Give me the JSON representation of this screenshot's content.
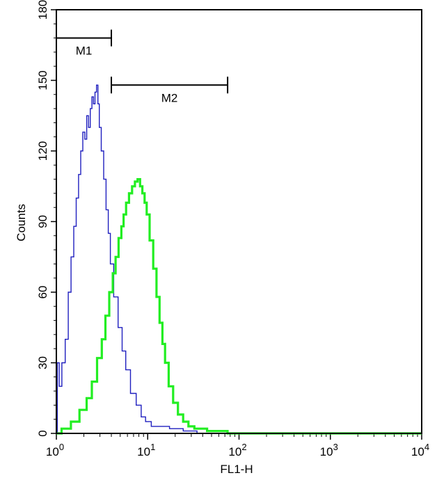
{
  "chart_data": {
    "type": "histogram",
    "xlabel": "FL1-H",
    "ylabel": "Counts",
    "x_scale": "log",
    "xlim": [
      1,
      10000
    ],
    "ylim": [
      0,
      180
    ],
    "y_ticks": [
      0,
      30,
      60,
      90,
      120,
      150,
      180
    ],
    "x_ticks": [
      {
        "base": "10",
        "exp": "0"
      },
      {
        "base": "10",
        "exp": "1"
      },
      {
        "base": "10",
        "exp": "2"
      },
      {
        "base": "10",
        "exp": "3"
      },
      {
        "base": "10",
        "exp": "4"
      }
    ],
    "colors": {
      "control": "#1f1fbf",
      "sample": "#22ee22",
      "axis": "#000000"
    },
    "series": [
      {
        "color_key": "control",
        "x": [
          1.0,
          1.05,
          1.1,
          1.2,
          1.3,
          1.4,
          1.5,
          1.6,
          1.7,
          1.8,
          1.9,
          2.0,
          2.1,
          2.2,
          2.3,
          2.4,
          2.5,
          2.6,
          2.7,
          2.8,
          2.9,
          3.0,
          3.2,
          3.4,
          3.6,
          3.8,
          4.0,
          4.5,
          5.0,
          5.5,
          6.0,
          7.0,
          8.0,
          9.0,
          10,
          12,
          15,
          20,
          30,
          40,
          60,
          100,
          1000,
          10000
        ],
        "y": [
          0,
          30,
          20,
          30,
          40,
          60,
          75,
          88,
          100,
          110,
          120,
          128,
          125,
          135,
          130,
          138,
          143,
          140,
          145,
          148,
          140,
          130,
          120,
          108,
          95,
          85,
          72,
          58,
          45,
          35,
          27,
          17,
          12,
          7,
          5,
          3,
          3,
          2,
          1,
          0,
          0,
          0,
          0,
          0
        ]
      },
      {
        "color_key": "sample",
        "x": [
          1.0,
          1.3,
          1.6,
          2.0,
          2.3,
          2.6,
          3.0,
          3.3,
          3.6,
          4.0,
          4.3,
          4.6,
          5.0,
          5.3,
          5.6,
          6.0,
          6.5,
          7.0,
          7.5,
          8.0,
          8.5,
          9.0,
          9.5,
          10,
          11,
          12,
          13,
          14,
          15,
          16,
          18,
          20,
          23,
          26,
          30,
          35,
          40,
          50,
          60,
          70,
          80,
          100,
          1000,
          10000
        ],
        "y": [
          0,
          2,
          5,
          10,
          15,
          22,
          32,
          40,
          50,
          60,
          68,
          75,
          83,
          88,
          93,
          98,
          102,
          105,
          107,
          108,
          105,
          102,
          98,
          93,
          82,
          70,
          58,
          47,
          38,
          30,
          20,
          13,
          8,
          5,
          3,
          2,
          2,
          1,
          1,
          1,
          0,
          0,
          0,
          0
        ]
      }
    ],
    "markers": [
      {
        "label": "M1",
        "x_start": 1.0,
        "x_end": 4.0,
        "y": 168
      },
      {
        "label": "M2",
        "x_start": 4.0,
        "x_end": 75.0,
        "y": 148
      }
    ]
  }
}
